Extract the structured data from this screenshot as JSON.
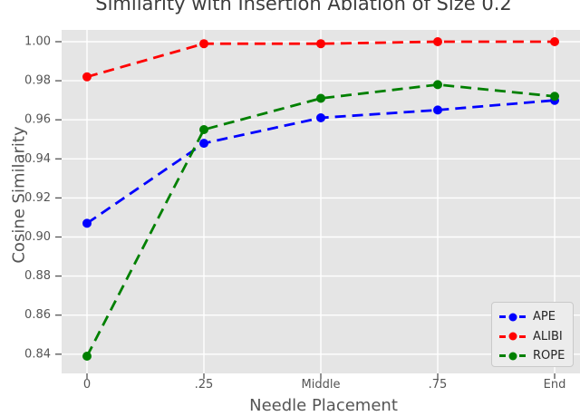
{
  "chart_data": {
    "type": "line",
    "title": "Similarity with Insertion Ablation of Size 0.2",
    "xlabel": "Needle Placement",
    "ylabel": "Cosine Similarity",
    "x_tick_labels": [
      "0",
      ".25",
      "Middle",
      ".75",
      "End"
    ],
    "y_ticks": [
      0.84,
      0.86,
      0.88,
      0.9,
      0.92,
      0.94,
      0.96,
      0.98,
      1.0
    ],
    "y_tick_labels": [
      "0.84",
      "0.86",
      "0.88",
      "0.90",
      "0.92",
      "0.94",
      "0.96",
      "0.98",
      "1.00"
    ],
    "ylim": [
      0.83,
      1.006
    ],
    "grid": true,
    "line_style": "dashed",
    "marker": "circle",
    "legend_position": "lower right",
    "series": [
      {
        "name": "APE",
        "color": "#0000ff",
        "values": [
          0.907,
          0.948,
          0.961,
          0.965,
          0.97
        ]
      },
      {
        "name": "ALIBI",
        "color": "#ff0000",
        "values": [
          0.982,
          0.999,
          0.999,
          1.0,
          1.0
        ]
      },
      {
        "name": "ROPE",
        "color": "#008000",
        "values": [
          0.839,
          0.955,
          0.971,
          0.978,
          0.972
        ]
      }
    ],
    "colors": {
      "plot_background": "#e5e5e5",
      "grid": "#ffffff",
      "tick_text": "#555555",
      "axis_label_text": "#555555",
      "title_text": "#3c3c3c",
      "legend_background": "#ececec",
      "legend_border": "#c9c9c9"
    }
  }
}
